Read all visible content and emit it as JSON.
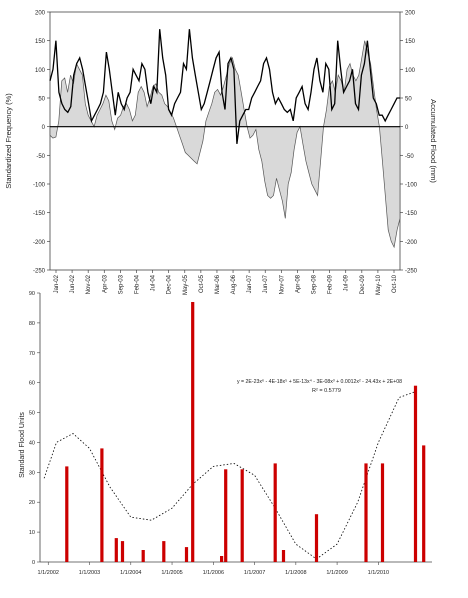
{
  "chart_data": [
    {
      "type": "line",
      "title": "",
      "ylabel": "Standardized Frequency (%)",
      "y2label": "Accumulated Flood (mm)",
      "ylim": [
        -250,
        200
      ],
      "y2lim": [
        -250,
        200
      ],
      "yticks": [
        "200",
        "150",
        "100",
        "50",
        "0",
        "-50",
        "-100",
        "-150",
        "-200",
        "-250"
      ],
      "y2ticks": [
        "200",
        "150",
        "100",
        "50",
        "0",
        "-50",
        "-100",
        "-150",
        "-200",
        "-250"
      ],
      "xtick_labels": [
        "Jan-02",
        "Jun-02",
        "Nov-02",
        "Apr-03",
        "Sep-03",
        "Feb-04",
        "Jul-04",
        "Dec-04",
        "May-05",
        "Oct-05",
        "Mar-06",
        "Aug-06",
        "Jan-07",
        "Jun-07",
        "Nov-07",
        "Apr-08",
        "Sep-08",
        "Feb-09",
        "Jul-09",
        "Dec-09",
        "May-10",
        "Oct-10"
      ],
      "series": [
        {
          "kind": "area",
          "values": [
            -15,
            -20,
            -18,
            10,
            80,
            85,
            60,
            90,
            75,
            110,
            100,
            90,
            40,
            20,
            10,
            0,
            20,
            30,
            40,
            55,
            45,
            10,
            -5,
            15,
            20,
            35,
            40,
            30,
            10,
            20,
            60,
            70,
            60,
            35,
            50,
            70,
            75,
            60,
            55,
            40,
            35,
            25,
            15,
            0,
            -15,
            -30,
            -45,
            -50,
            -55,
            -60,
            -65,
            -45,
            -25,
            10,
            25,
            40,
            60,
            65,
            55,
            70,
            90,
            110,
            120,
            100,
            90,
            60,
            30,
            0,
            -20,
            -15,
            -5,
            -40,
            -60,
            -95,
            -120,
            -125,
            -120,
            -90,
            -110,
            -130,
            -160,
            -100,
            -80,
            -40,
            -10,
            0,
            -30,
            -60,
            -80,
            -100,
            -110,
            -120,
            -60,
            0,
            30,
            70,
            80,
            60,
            90,
            80,
            60,
            100,
            110,
            90,
            80,
            90,
            120,
            150,
            130,
            110,
            70,
            30,
            0,
            -60,
            -120,
            -180,
            -200,
            -210,
            -180,
            -160
          ]
        },
        {
          "kind": "line",
          "values": [
            80,
            100,
            150,
            60,
            40,
            30,
            25,
            35,
            90,
            110,
            120,
            100,
            70,
            40,
            10,
            20,
            30,
            40,
            60,
            130,
            100,
            60,
            20,
            60,
            40,
            30,
            50,
            60,
            100,
            90,
            80,
            110,
            100,
            60,
            40,
            70,
            60,
            170,
            120,
            90,
            30,
            20,
            40,
            50,
            60,
            110,
            100,
            170,
            120,
            90,
            60,
            30,
            40,
            60,
            80,
            100,
            120,
            130,
            60,
            30,
            110,
            120,
            100,
            -30,
            10,
            20,
            30,
            30,
            50,
            60,
            70,
            80,
            110,
            120,
            100,
            60,
            40,
            50,
            40,
            30,
            25,
            30,
            10,
            50,
            60,
            70,
            40,
            30,
            60,
            100,
            120,
            80,
            60,
            110,
            100,
            30,
            40,
            150,
            100,
            60,
            70,
            80,
            100,
            40,
            30,
            90,
            110,
            150,
            100,
            50,
            40,
            20,
            20,
            10,
            20,
            30,
            40,
            50,
            50
          ]
        }
      ]
    },
    {
      "type": "bar",
      "ylabel": "Standard Flood Units",
      "ylim": [
        0,
        90
      ],
      "yticks": [
        "90",
        "80",
        "70",
        "60",
        "50",
        "40",
        "30",
        "20",
        "10",
        "0"
      ],
      "xtick_labels": [
        "1/1/2002",
        "1/1/2003",
        "1/1/2004",
        "1/1/2005",
        "1/1/2006",
        "1/1/2007",
        "1/1/2008",
        "1/1/2009",
        "1/1/2010"
      ],
      "legend_text": "y = 2E-23x⁶ - 4E-18x⁵ + 5E-13x⁴ - 3E-08x³ + 0.0012x² - 24.43x + 2E+08",
      "legend_text2": "R² = 0.5779",
      "bars": [
        {
          "x": 2002.45,
          "value": 32
        },
        {
          "x": 2003.3,
          "value": 38
        },
        {
          "x": 2003.65,
          "value": 8
        },
        {
          "x": 2003.8,
          "value": 7
        },
        {
          "x": 2004.3,
          "value": 4
        },
        {
          "x": 2004.8,
          "value": 7
        },
        {
          "x": 2005.35,
          "value": 5
        },
        {
          "x": 2005.5,
          "value": 87
        },
        {
          "x": 2006.2,
          "value": 2
        },
        {
          "x": 2006.3,
          "value": 31
        },
        {
          "x": 2006.7,
          "value": 31
        },
        {
          "x": 2007.5,
          "value": 33
        },
        {
          "x": 2007.7,
          "value": 4
        },
        {
          "x": 2008.5,
          "value": 16
        },
        {
          "x": 2009.7,
          "value": 33
        },
        {
          "x": 2010.1,
          "value": 33
        },
        {
          "x": 2010.9,
          "value": 59
        },
        {
          "x": 2011.1,
          "value": 39
        }
      ],
      "trend": {
        "style": "dotted",
        "x": [
          2001.9,
          2002.2,
          2002.6,
          2003.0,
          2003.5,
          2004.0,
          2004.5,
          2005.0,
          2005.5,
          2006.0,
          2006.5,
          2007.0,
          2007.5,
          2008.0,
          2008.5,
          2009.0,
          2009.5,
          2010.0,
          2010.5,
          2010.9
        ],
        "y": [
          28,
          40,
          43,
          38,
          25,
          15,
          14,
          18,
          26,
          32,
          33,
          29,
          18,
          6,
          1,
          6,
          20,
          40,
          55,
          57
        ]
      }
    }
  ]
}
